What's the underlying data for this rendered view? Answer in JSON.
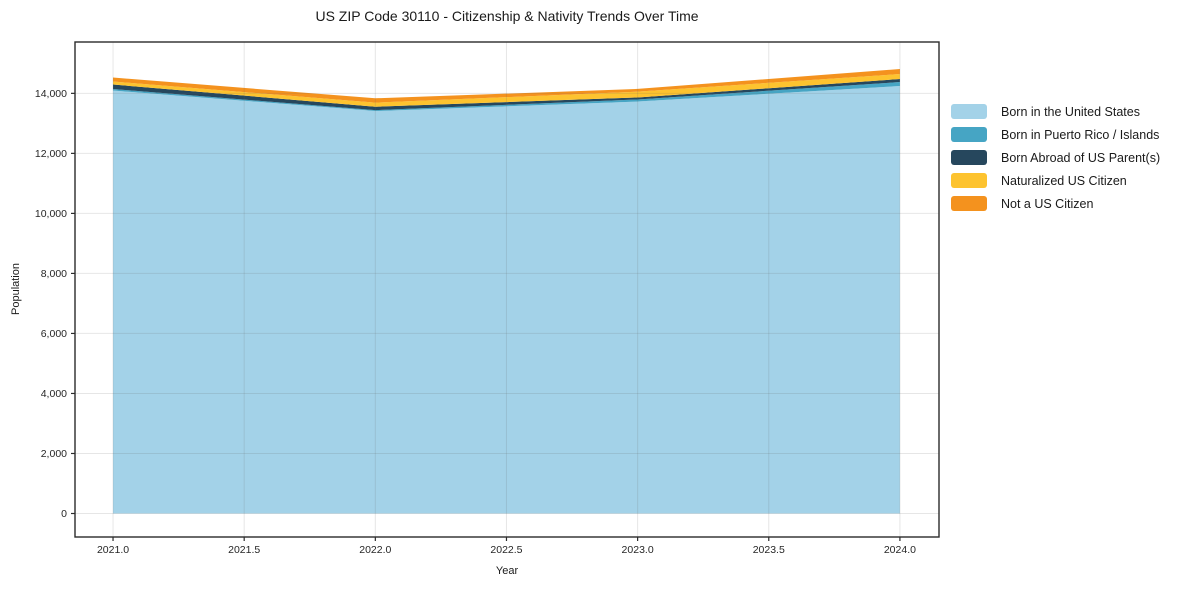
{
  "title": "US ZIP Code 30110 - Citizenship & Nativity Trends Over Time",
  "chart_data": {
    "type": "area",
    "stacked": true,
    "title": "US ZIP Code 30110 - Citizenship & Nativity Trends Over Time",
    "xlabel": "Year",
    "ylabel": "Population",
    "x": [
      2021,
      2022,
      2023,
      2024
    ],
    "series": [
      {
        "name": "Born in the United States",
        "color": "#a3d2e8",
        "values": [
          14094,
          13410,
          13727,
          14244
        ]
      },
      {
        "name": "Born in Puerto Rico / Islands",
        "color": "#46a5c4",
        "values": [
          50,
          30,
          70,
          133
        ]
      },
      {
        "name": "Born Abroad of US Parent(s)",
        "color": "#26475d",
        "values": [
          150,
          115,
          65,
          100
        ]
      },
      {
        "name": "Naturalized US Citizen",
        "color": "#fdc32f",
        "values": [
          100,
          135,
          195,
          167
        ]
      },
      {
        "name": "Not a US Citizen",
        "color": "#f4921e",
        "values": [
          133,
          145,
          90,
          166
        ]
      }
    ],
    "xlim": [
      2020.855,
      2024.149
    ],
    "ylim": [
      -783,
      15711
    ],
    "x_ticks": {
      "values": [
        2021.0,
        2021.5,
        2022.0,
        2022.5,
        2023.0,
        2023.5,
        2024.0
      ],
      "labels": [
        "2021.0",
        "2021.5",
        "2022.0",
        "2022.5",
        "2023.0",
        "2023.5",
        "2024.0"
      ]
    },
    "y_ticks": {
      "values": [
        0,
        2000,
        4000,
        6000,
        8000,
        10000,
        12000,
        14000
      ],
      "labels": [
        "0",
        "2,000",
        "4,000",
        "6,000",
        "8,000",
        "10,000",
        "12,000",
        "14,000"
      ]
    },
    "grid": true,
    "legend_position": "right"
  }
}
